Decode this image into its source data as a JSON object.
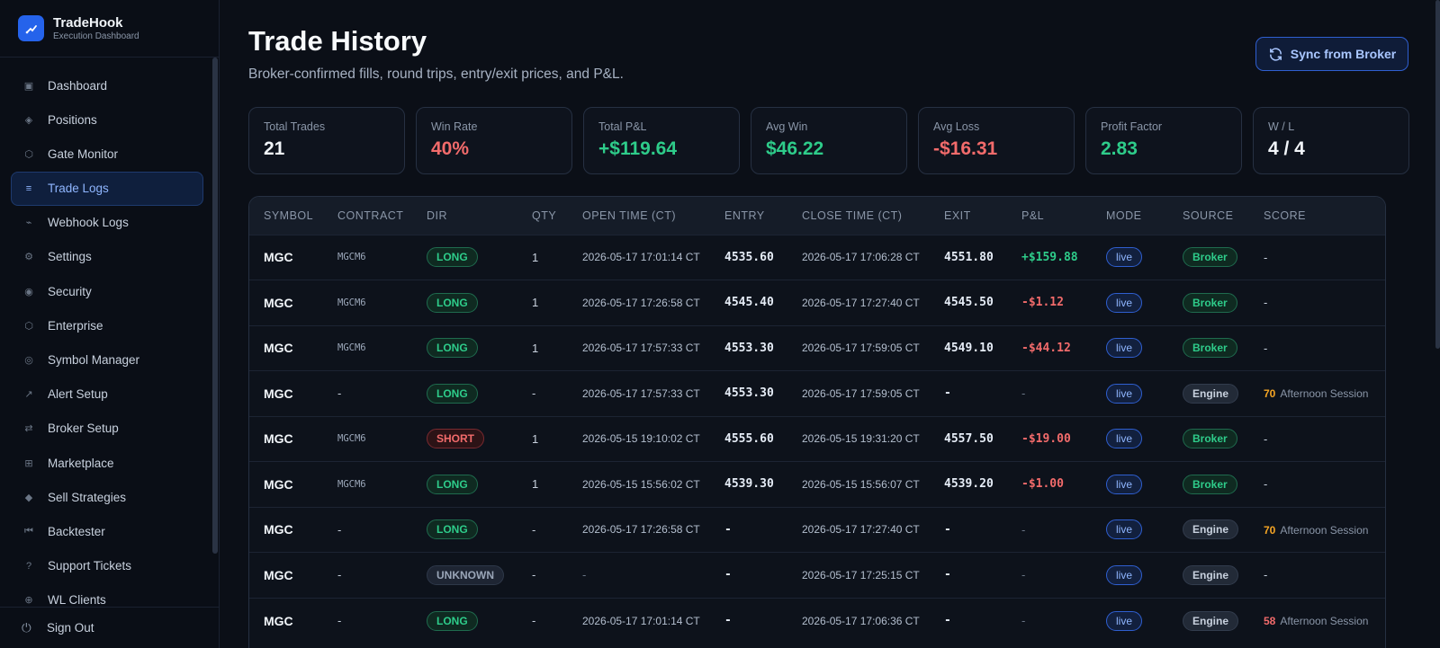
{
  "brand": {
    "name": "TradeHook",
    "subtitle": "Execution Dashboard"
  },
  "sidebar": {
    "items": [
      {
        "label": "Dashboard",
        "icon": "dashboard-icon",
        "glyph": "▣",
        "active": false
      },
      {
        "label": "Positions",
        "icon": "positions-icon",
        "glyph": "◈",
        "active": false
      },
      {
        "label": "Gate Monitor",
        "icon": "gate-icon",
        "glyph": "⬡",
        "active": false
      },
      {
        "label": "Trade Logs",
        "icon": "list-icon",
        "glyph": "≡",
        "active": true
      },
      {
        "label": "Webhook Logs",
        "icon": "webhook-icon",
        "glyph": "⌁",
        "active": false
      },
      {
        "label": "Settings",
        "icon": "gear-icon",
        "glyph": "⚙",
        "active": false
      },
      {
        "label": "Security",
        "icon": "shield-icon",
        "glyph": "◉",
        "active": false
      },
      {
        "label": "Enterprise",
        "icon": "enterprise-icon",
        "glyph": "⬡",
        "active": false
      },
      {
        "label": "Symbol Manager",
        "icon": "symbol-icon",
        "glyph": "◎",
        "active": false
      },
      {
        "label": "Alert Setup",
        "icon": "alert-icon",
        "glyph": "↗",
        "active": false
      },
      {
        "label": "Broker Setup",
        "icon": "exchange-icon",
        "glyph": "⇄",
        "active": false
      },
      {
        "label": "Marketplace",
        "icon": "grid-icon",
        "glyph": "⊞",
        "active": false
      },
      {
        "label": "Sell Strategies",
        "icon": "diamond-icon",
        "glyph": "◆",
        "active": false
      },
      {
        "label": "Backtester",
        "icon": "rewind-icon",
        "glyph": "⏮",
        "active": false
      },
      {
        "label": "Support Tickets",
        "icon": "help-icon",
        "glyph": "?",
        "active": false
      },
      {
        "label": "WL Clients",
        "icon": "clients-icon",
        "glyph": "⊕",
        "active": false
      }
    ],
    "signout": "Sign Out"
  },
  "header": {
    "title": "Trade History",
    "subtitle": "Broker-confirmed fills, round trips, entry/exit prices, and P&L.",
    "sync_label": "Sync from Broker"
  },
  "stats": [
    {
      "label": "Total Trades",
      "value": "21",
      "tone": "white"
    },
    {
      "label": "Win Rate",
      "value": "40%",
      "tone": "red"
    },
    {
      "label": "Total P&L",
      "value": "+$119.64",
      "tone": "green"
    },
    {
      "label": "Avg Win",
      "value": "$46.22",
      "tone": "green"
    },
    {
      "label": "Avg Loss",
      "value": "-$16.31",
      "tone": "red"
    },
    {
      "label": "Profit Factor",
      "value": "2.83",
      "tone": "green"
    },
    {
      "label": "W / L",
      "value": "4 / 4",
      "tone": "white"
    }
  ],
  "table": {
    "columns": [
      "SYMBOL",
      "CONTRACT",
      "DIR",
      "QTY",
      "OPEN TIME (CT)",
      "ENTRY",
      "CLOSE TIME (CT)",
      "EXIT",
      "P&L",
      "MODE",
      "SOURCE",
      "SCORE"
    ],
    "rows": [
      {
        "symbol": "MGC",
        "contract": "MGCM6",
        "dir": "LONG",
        "qty": "1",
        "open": "2026-05-17 17:01:14 CT",
        "entry": "4535.60",
        "close": "2026-05-17 17:06:28 CT",
        "exit": "4551.80",
        "pnl": "+$159.88",
        "pnl_tone": "green",
        "mode": "live",
        "source": "Broker",
        "score": "",
        "score_tone": "",
        "session": "-"
      },
      {
        "symbol": "MGC",
        "contract": "MGCM6",
        "dir": "LONG",
        "qty": "1",
        "open": "2026-05-17 17:26:58 CT",
        "entry": "4545.40",
        "close": "2026-05-17 17:27:40 CT",
        "exit": "4545.50",
        "pnl": "-$1.12",
        "pnl_tone": "red",
        "mode": "live",
        "source": "Broker",
        "score": "",
        "score_tone": "",
        "session": "-"
      },
      {
        "symbol": "MGC",
        "contract": "MGCM6",
        "dir": "LONG",
        "qty": "1",
        "open": "2026-05-17 17:57:33 CT",
        "entry": "4553.30",
        "close": "2026-05-17 17:59:05 CT",
        "exit": "4549.10",
        "pnl": "-$44.12",
        "pnl_tone": "red",
        "mode": "live",
        "source": "Broker",
        "score": "",
        "score_tone": "",
        "session": "-"
      },
      {
        "symbol": "MGC",
        "contract": "-",
        "dir": "LONG",
        "qty": "-",
        "open": "2026-05-17 17:57:33 CT",
        "entry": "4553.30",
        "close": "2026-05-17 17:59:05 CT",
        "exit": "-",
        "pnl": "-",
        "pnl_tone": "dim",
        "mode": "live",
        "source": "Engine",
        "score": "70",
        "score_tone": "amber",
        "session": "Afternoon Session"
      },
      {
        "symbol": "MGC",
        "contract": "MGCM6",
        "dir": "SHORT",
        "qty": "1",
        "open": "2026-05-15 19:10:02 CT",
        "entry": "4555.60",
        "close": "2026-05-15 19:31:20 CT",
        "exit": "4557.50",
        "pnl": "-$19.00",
        "pnl_tone": "red",
        "mode": "live",
        "source": "Broker",
        "score": "",
        "score_tone": "",
        "session": "-"
      },
      {
        "symbol": "MGC",
        "contract": "MGCM6",
        "dir": "LONG",
        "qty": "1",
        "open": "2026-05-15 15:56:02 CT",
        "entry": "4539.30",
        "close": "2026-05-15 15:56:07 CT",
        "exit": "4539.20",
        "pnl": "-$1.00",
        "pnl_tone": "red",
        "mode": "live",
        "source": "Broker",
        "score": "",
        "score_tone": "",
        "session": "-"
      },
      {
        "symbol": "MGC",
        "contract": "-",
        "dir": "LONG",
        "qty": "-",
        "open": "2026-05-17 17:26:58 CT",
        "entry": "-",
        "close": "2026-05-17 17:27:40 CT",
        "exit": "-",
        "pnl": "-",
        "pnl_tone": "dim",
        "mode": "live",
        "source": "Engine",
        "score": "70",
        "score_tone": "amber",
        "session": "Afternoon Session"
      },
      {
        "symbol": "MGC",
        "contract": "-",
        "dir": "UNKNOWN",
        "qty": "-",
        "open": "-",
        "entry": "-",
        "close": "2026-05-17 17:25:15 CT",
        "exit": "-",
        "pnl": "-",
        "pnl_tone": "dim",
        "mode": "live",
        "source": "Engine",
        "score": "",
        "score_tone": "",
        "session": "-"
      },
      {
        "symbol": "MGC",
        "contract": "-",
        "dir": "LONG",
        "qty": "-",
        "open": "2026-05-17 17:01:14 CT",
        "entry": "-",
        "close": "2026-05-17 17:06:36 CT",
        "exit": "-",
        "pnl": "-",
        "pnl_tone": "dim",
        "mode": "live",
        "source": "Engine",
        "score": "58",
        "score_tone": "red",
        "session": "Afternoon Session"
      }
    ]
  }
}
